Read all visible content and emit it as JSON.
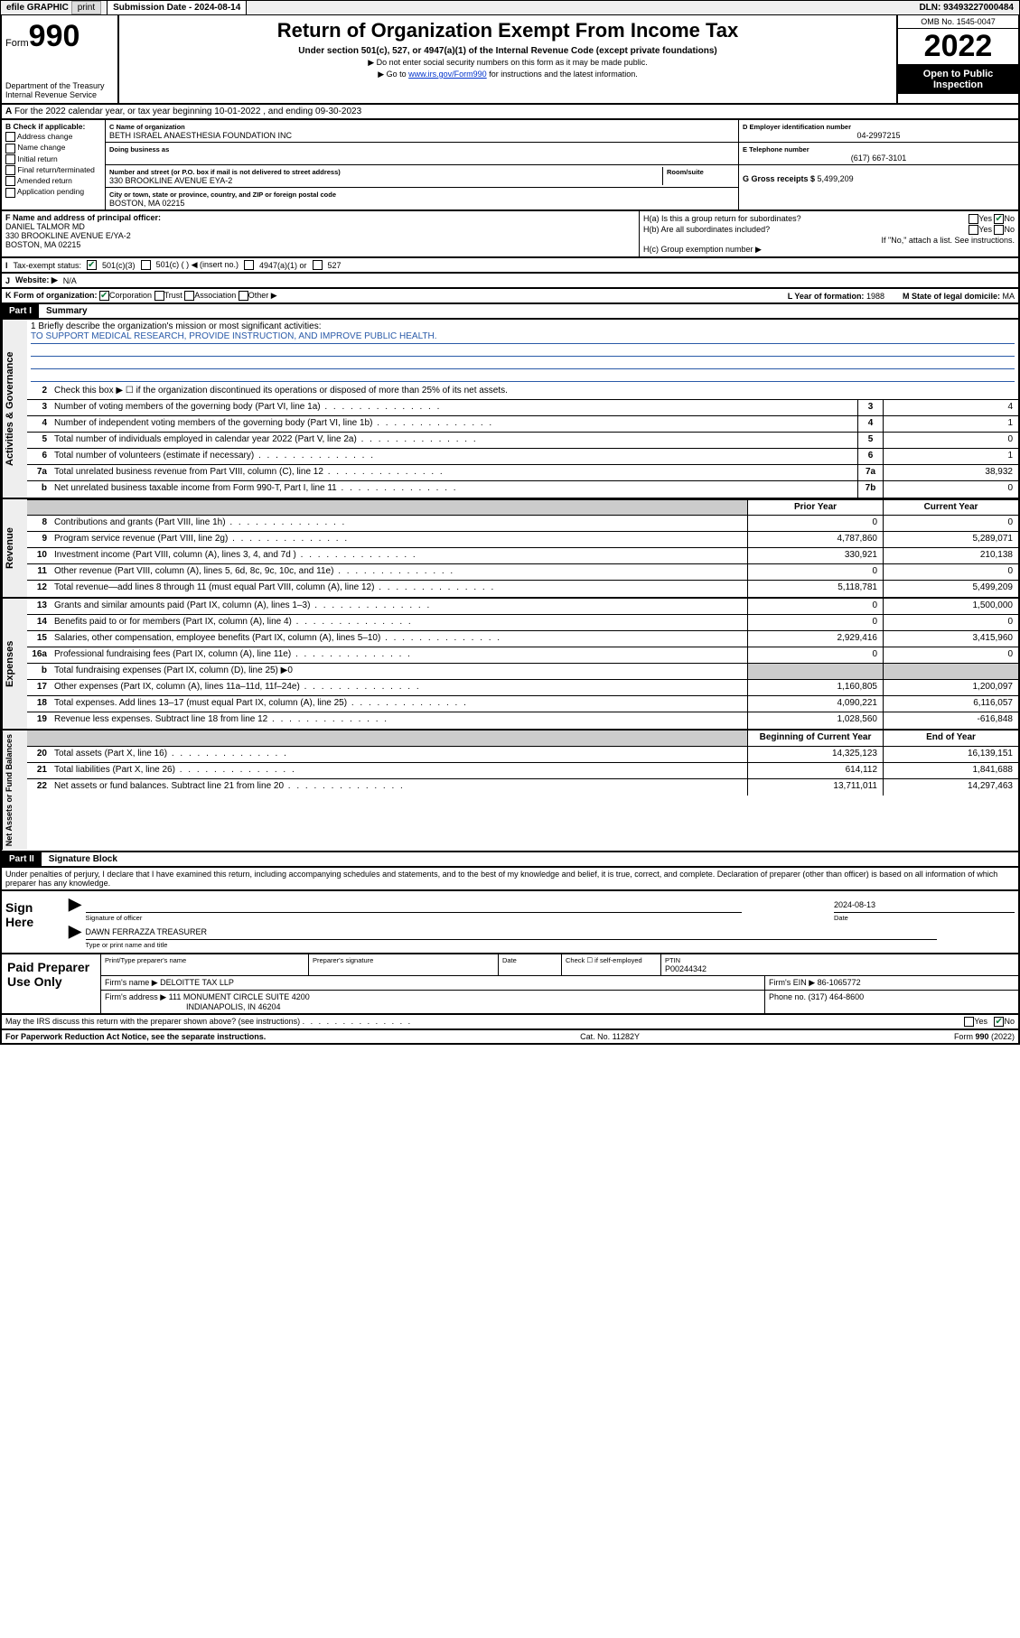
{
  "topbar": {
    "efile": "efile GRAPHIC",
    "print": "print",
    "subdate_label": "Submission Date - ",
    "subdate": "2024-08-14",
    "dln_label": "DLN: ",
    "dln": "93493227000484"
  },
  "header": {
    "form_word": "Form",
    "form_num": "990",
    "dept": "Department of the Treasury",
    "irs": "Internal Revenue Service",
    "title": "Return of Organization Exempt From Income Tax",
    "sub": "Under section 501(c), 527, or 4947(a)(1) of the Internal Revenue Code (except private foundations)",
    "note1": "▶ Do not enter social security numbers on this form as it may be made public.",
    "note2_pre": "▶ Go to ",
    "note2_link": "www.irs.gov/Form990",
    "note2_post": " for instructions and the latest information.",
    "omb": "OMB No. 1545-0047",
    "year": "2022",
    "inspect": "Open to Public Inspection"
  },
  "rowA": "For the 2022 calendar year, or tax year beginning 10-01-2022   , and ending 09-30-2023",
  "boxB": {
    "title": "B Check if applicable:",
    "opts": [
      "Address change",
      "Name change",
      "Initial return",
      "Final return/terminated",
      "Amended return",
      "Application pending"
    ]
  },
  "boxC": {
    "name_lab": "C Name of organization",
    "name": "BETH ISRAEL ANAESTHESIA FOUNDATION INC",
    "dba_lab": "Doing business as",
    "dba": "",
    "street_lab": "Number and street (or P.O. box if mail is not delivered to street address)",
    "room_lab": "Room/suite",
    "street": "330 BROOKLINE AVENUE EYA-2",
    "city_lab": "City or town, state or province, country, and ZIP or foreign postal code",
    "city": "BOSTON, MA  02215"
  },
  "boxD": {
    "lab": "D Employer identification number",
    "val": "04-2997215"
  },
  "boxE": {
    "lab": "E Telephone number",
    "val": "(617) 667-3101"
  },
  "boxG": {
    "lab": "G Gross receipts $ ",
    "val": "5,499,209"
  },
  "boxF": {
    "lab": "F  Name and address of principal officer:",
    "name": "DANIEL TALMOR MD",
    "addr1": "330 BROOKLINE AVENUE E/YA-2",
    "addr2": "BOSTON, MA  02215"
  },
  "boxH": {
    "a": "H(a)  Is this a group return for subordinates?",
    "b": "H(b)  Are all subordinates included?",
    "b_note": "If \"No,\" attach a list. See instructions.",
    "c": "H(c)  Group exemption number ▶",
    "yes": "Yes",
    "no": "No"
  },
  "rowI": {
    "lab": "Tax-exempt status:",
    "o1": "501(c)(3)",
    "o2": "501(c) (  ) ◀ (insert no.)",
    "o3": "4947(a)(1) or",
    "o4": "527"
  },
  "rowJ": {
    "lab": "Website: ▶",
    "val": "N/A"
  },
  "rowK": {
    "lab": "K Form of organization:",
    "opts": [
      "Corporation",
      "Trust",
      "Association",
      "Other ▶"
    ],
    "year_lab": "L Year of formation: ",
    "year": "1988",
    "state_lab": "M State of legal domicile: ",
    "state": "MA"
  },
  "part1": {
    "hdr": "Part I",
    "title": "Summary"
  },
  "sections": {
    "gov": "Activities & Governance",
    "rev": "Revenue",
    "exp": "Expenses",
    "net": "Net Assets or Fund Balances"
  },
  "mission": {
    "q": "1   Briefly describe the organization's mission or most significant activities:",
    "a": "TO SUPPORT MEDICAL RESEARCH, PROVIDE INSTRUCTION, AND IMPROVE PUBLIC HEALTH."
  },
  "lines_gov": [
    {
      "n": "2",
      "t": "Check this box ▶ ☐  if the organization discontinued its operations or disposed of more than 25% of its net assets."
    },
    {
      "n": "3",
      "t": "Number of voting members of the governing body (Part VI, line 1a)",
      "box": "3",
      "v": "4"
    },
    {
      "n": "4",
      "t": "Number of independent voting members of the governing body (Part VI, line 1b)",
      "box": "4",
      "v": "1"
    },
    {
      "n": "5",
      "t": "Total number of individuals employed in calendar year 2022 (Part V, line 2a)",
      "box": "5",
      "v": "0"
    },
    {
      "n": "6",
      "t": "Total number of volunteers (estimate if necessary)",
      "box": "6",
      "v": "1"
    },
    {
      "n": "7a",
      "t": "Total unrelated business revenue from Part VIII, column (C), line 12",
      "box": "7a",
      "v": "38,932"
    },
    {
      "n": "b",
      "t": "Net unrelated business taxable income from Form 990-T, Part I, line 11",
      "box": "7b",
      "v": "0"
    }
  ],
  "col_hdr": {
    "prior": "Prior Year",
    "curr": "Current Year"
  },
  "lines_rev": [
    {
      "n": "8",
      "t": "Contributions and grants (Part VIII, line 1h)",
      "p": "0",
      "c": "0"
    },
    {
      "n": "9",
      "t": "Program service revenue (Part VIII, line 2g)",
      "p": "4,787,860",
      "c": "5,289,071"
    },
    {
      "n": "10",
      "t": "Investment income (Part VIII, column (A), lines 3, 4, and 7d )",
      "p": "330,921",
      "c": "210,138"
    },
    {
      "n": "11",
      "t": "Other revenue (Part VIII, column (A), lines 5, 6d, 8c, 9c, 10c, and 11e)",
      "p": "0",
      "c": "0"
    },
    {
      "n": "12",
      "t": "Total revenue—add lines 8 through 11 (must equal Part VIII, column (A), line 12)",
      "p": "5,118,781",
      "c": "5,499,209"
    }
  ],
  "lines_exp": [
    {
      "n": "13",
      "t": "Grants and similar amounts paid (Part IX, column (A), lines 1–3)",
      "p": "0",
      "c": "1,500,000"
    },
    {
      "n": "14",
      "t": "Benefits paid to or for members (Part IX, column (A), line 4)",
      "p": "0",
      "c": "0"
    },
    {
      "n": "15",
      "t": "Salaries, other compensation, employee benefits (Part IX, column (A), lines 5–10)",
      "p": "2,929,416",
      "c": "3,415,960"
    },
    {
      "n": "16a",
      "t": "Professional fundraising fees (Part IX, column (A), line 11e)",
      "p": "0",
      "c": "0"
    },
    {
      "n": "b",
      "t": "Total fundraising expenses (Part IX, column (D), line 25) ▶0",
      "grey": true
    },
    {
      "n": "17",
      "t": "Other expenses (Part IX, column (A), lines 11a–11d, 11f–24e)",
      "p": "1,160,805",
      "c": "1,200,097"
    },
    {
      "n": "18",
      "t": "Total expenses. Add lines 13–17 (must equal Part IX, column (A), line 25)",
      "p": "4,090,221",
      "c": "6,116,057"
    },
    {
      "n": "19",
      "t": "Revenue less expenses. Subtract line 18 from line 12",
      "p": "1,028,560",
      "c": "-616,848"
    }
  ],
  "col_hdr2": {
    "beg": "Beginning of Current Year",
    "end": "End of Year"
  },
  "lines_net": [
    {
      "n": "20",
      "t": "Total assets (Part X, line 16)",
      "p": "14,325,123",
      "c": "16,139,151"
    },
    {
      "n": "21",
      "t": "Total liabilities (Part X, line 26)",
      "p": "614,112",
      "c": "1,841,688"
    },
    {
      "n": "22",
      "t": "Net assets or fund balances. Subtract line 21 from line 20",
      "p": "13,711,011",
      "c": "14,297,463"
    }
  ],
  "part2": {
    "hdr": "Part II",
    "title": "Signature Block"
  },
  "decl": "Under penalties of perjury, I declare that I have examined this return, including accompanying schedules and statements, and to the best of my knowledge and belief, it is true, correct, and complete. Declaration of preparer (other than officer) is based on all information of which preparer has any knowledge.",
  "sign": {
    "here": "Sign Here",
    "sig_lab": "Signature of officer",
    "date": "2024-08-13",
    "date_lab": "Date",
    "name": "DAWN FERRAZZA  TREASURER",
    "name_lab": "Type or print name and title"
  },
  "prep": {
    "title": "Paid Preparer Use Only",
    "pt_lab": "Print/Type preparer's name",
    "sig_lab": "Preparer's signature",
    "date_lab": "Date",
    "self_lab": "Check ☐ if self-employed",
    "ptin_lab": "PTIN",
    "ptin": "P00244342",
    "firm_lab": "Firm's name   ▶",
    "firm": "DELOITTE TAX LLP",
    "ein_lab": "Firm's EIN ▶ ",
    "ein": "86-1065772",
    "addr_lab": "Firm's address ▶",
    "addr1": "111 MONUMENT CIRCLE SUITE 4200",
    "addr2": "INDIANAPOLIS, IN  46204",
    "phone_lab": "Phone no. ",
    "phone": "(317) 464-8600"
  },
  "discuss": {
    "q": "May the IRS discuss this return with the preparer shown above? (see instructions)",
    "yes": "Yes",
    "no": "No"
  },
  "footer": {
    "pra": "For Paperwork Reduction Act Notice, see the separate instructions.",
    "cat": "Cat. No. 11282Y",
    "form": "Form 990 (2022)"
  }
}
